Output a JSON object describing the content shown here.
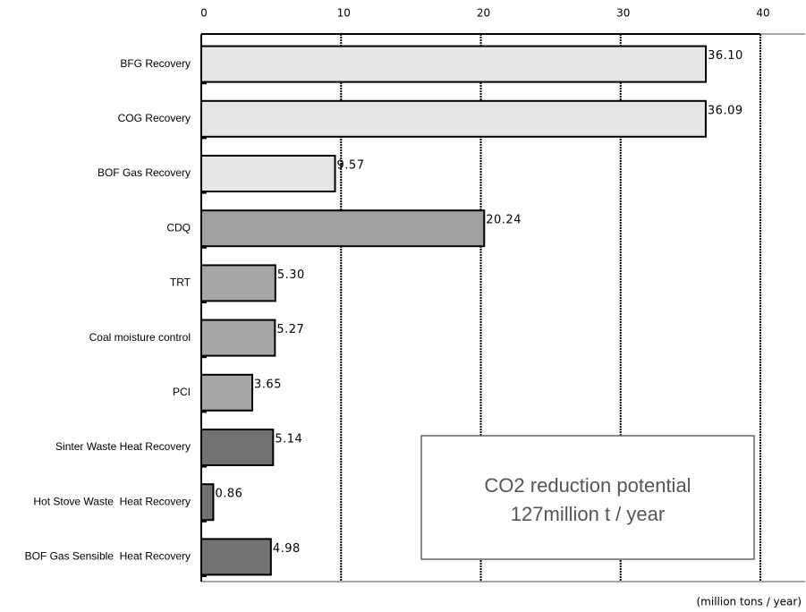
{
  "chart_data": {
    "type": "hbar",
    "categories": [
      "BFG Recovery",
      "COG Recovery",
      "BOF Gas Recovery",
      "CDQ",
      "TRT",
      "Coal moisture control",
      "PCI",
      "Sinter Waste Heat Recovery",
      "Hot Stove Waste  Heat Recovery",
      "BOF Gas Sensible  Heat Recovery"
    ],
    "values": [
      36.1,
      36.09,
      9.57,
      20.24,
      5.3,
      5.27,
      3.65,
      5.14,
      0.86,
      4.98
    ],
    "value_labels": [
      "36.10",
      "36.09",
      "9.57",
      "20.24",
      "5.30",
      "5.27",
      "3.65",
      "5.14",
      "0.86",
      "4.98"
    ],
    "colors": [
      "#e6e6e6",
      "#e6e6e6",
      "#e6e6e6",
      "#a0a0a0",
      "#a6a6a6",
      "#a6a6a6",
      "#a6a6a6",
      "#737373",
      "#737373",
      "#737373"
    ],
    "xlim": [
      0,
      40
    ],
    "xticks": [
      0,
      10,
      20,
      30,
      40
    ],
    "grid": true,
    "x_label": "(million tons / year)",
    "annotation": [
      "CO2 reduction potential",
      "127million t / year"
    ]
  }
}
